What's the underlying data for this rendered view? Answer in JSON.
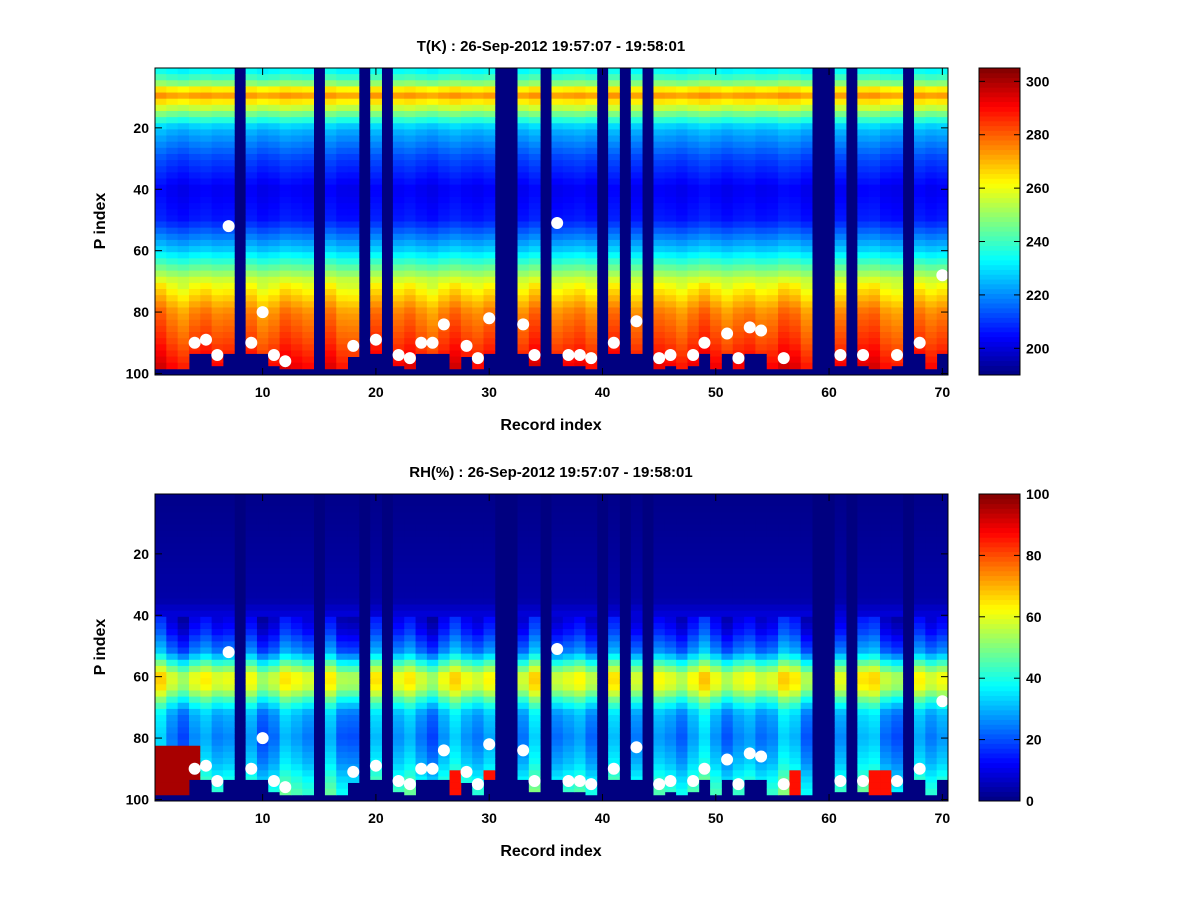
{
  "chart_data": [
    {
      "type": "heatmap",
      "title": "T(K) : 26-Sep-2012 19:57:07 - 19:58:01",
      "xlabel": "Record index",
      "ylabel": "P index",
      "xlim": [
        0.5,
        70.5
      ],
      "ylim": [
        100.5,
        0.5
      ],
      "y_reversed": true,
      "x_ticks": [
        10,
        20,
        30,
        40,
        50,
        60,
        70
      ],
      "y_ticks": [
        20,
        40,
        60,
        80,
        100
      ],
      "colormap": "jet",
      "colorbar": {
        "min": 190,
        "max": 305,
        "ticks": [
          200,
          220,
          240,
          260,
          280,
          300
        ]
      },
      "grid": false,
      "missing_records": [
        8,
        15,
        19,
        21,
        31,
        32,
        35,
        40,
        42,
        44,
        59,
        60,
        62,
        67
      ],
      "profile": {
        "p": [
          1,
          5,
          9,
          12,
          20,
          30,
          40,
          50,
          60,
          70,
          80,
          90,
          96,
          100
        ],
        "value": [
          232,
          245,
          275,
          262,
          226,
          212,
          203,
          207,
          228,
          258,
          276,
          284,
          290,
          294
        ]
      },
      "surface_markers": {
        "x": [
          4,
          5,
          6,
          7,
          9,
          10,
          11,
          12,
          18,
          20,
          22,
          23,
          24,
          25,
          26,
          28,
          29,
          30,
          33,
          34,
          36,
          37,
          38,
          39,
          41,
          43,
          45,
          46,
          48,
          49,
          51,
          52,
          53,
          54,
          56,
          61,
          63,
          66,
          68,
          70
        ],
        "y": [
          90,
          89,
          94,
          52,
          90,
          80,
          94,
          96,
          91,
          89,
          94,
          95,
          90,
          90,
          84,
          91,
          95,
          82,
          84,
          94,
          51,
          94,
          94,
          95,
          90,
          83,
          95,
          94,
          94,
          90,
          87,
          95,
          85,
          86,
          95,
          94,
          94,
          94,
          90,
          68
        ]
      }
    },
    {
      "type": "heatmap",
      "title": "RH(%) : 26-Sep-2012 19:57:07 - 19:58:01",
      "xlabel": "Record index",
      "ylabel": "P index",
      "xlim": [
        0.5,
        70.5
      ],
      "ylim": [
        100.5,
        0.5
      ],
      "y_reversed": true,
      "x_ticks": [
        10,
        20,
        30,
        40,
        50,
        60,
        70
      ],
      "y_ticks": [
        20,
        40,
        60,
        80,
        100
      ],
      "colormap": "jet",
      "colorbar": {
        "min": 0,
        "max": 100,
        "ticks": [
          0,
          20,
          40,
          60,
          80,
          100
        ]
      },
      "grid": false,
      "missing_records": [
        8,
        15,
        19,
        21,
        31,
        32,
        35,
        40,
        42,
        44,
        59,
        60,
        62,
        67
      ],
      "profile": {
        "p": [
          1,
          35,
          45,
          52,
          56,
          60,
          64,
          68,
          72,
          80,
          88,
          94,
          100
        ],
        "value": [
          1,
          4,
          14,
          26,
          45,
          62,
          58,
          42,
          30,
          26,
          32,
          40,
          46
        ]
      },
      "surface_markers": {
        "x": [
          4,
          5,
          6,
          7,
          9,
          10,
          11,
          12,
          18,
          20,
          22,
          23,
          24,
          25,
          26,
          28,
          29,
          30,
          33,
          34,
          36,
          37,
          38,
          39,
          41,
          43,
          45,
          46,
          48,
          49,
          51,
          52,
          53,
          54,
          56,
          61,
          63,
          66,
          68,
          70
        ],
        "y": [
          90,
          89,
          94,
          52,
          90,
          80,
          94,
          96,
          91,
          89,
          94,
          95,
          90,
          90,
          84,
          91,
          95,
          82,
          84,
          94,
          51,
          94,
          94,
          95,
          90,
          83,
          95,
          94,
          94,
          90,
          87,
          95,
          85,
          86,
          95,
          94,
          94,
          94,
          90,
          68
        ]
      }
    }
  ]
}
